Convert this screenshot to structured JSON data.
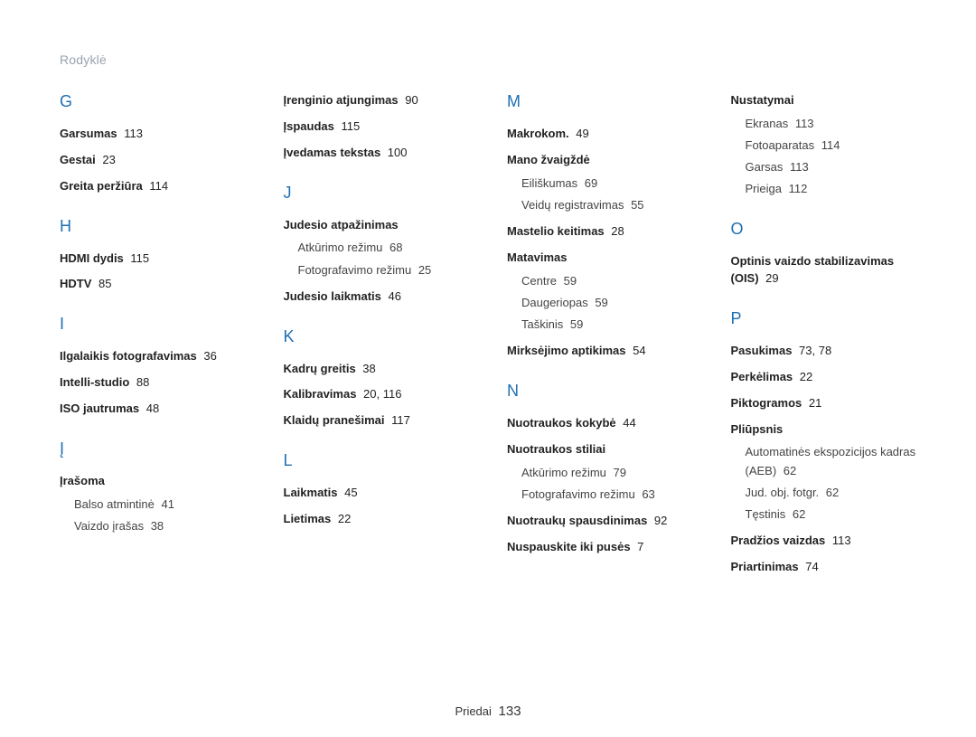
{
  "header": {
    "title": "Rodyklė"
  },
  "footer": {
    "section": "Priedai",
    "page": "133"
  },
  "colors": {
    "accent": "#1f6fb3",
    "muted": "#9aa3ae",
    "text": "#222222"
  },
  "cols": [
    [
      {
        "type": "letter",
        "text": "G"
      },
      {
        "type": "entry",
        "label": "Garsumas",
        "refs": "113"
      },
      {
        "type": "entry",
        "label": "Gestai",
        "refs": "23"
      },
      {
        "type": "entry",
        "label": "Greita peržiūra",
        "refs": "114"
      },
      {
        "type": "letter",
        "text": "H"
      },
      {
        "type": "entry",
        "label": "HDMI dydis",
        "refs": "115"
      },
      {
        "type": "entry",
        "label": "HDTV",
        "refs": "85"
      },
      {
        "type": "letter",
        "text": "I"
      },
      {
        "type": "entry",
        "label": "Ilgalaikis fotografavimas",
        "refs": "36"
      },
      {
        "type": "entry",
        "label": "Intelli-studio",
        "refs": "88"
      },
      {
        "type": "entry",
        "label": "ISO jautrumas",
        "refs": "48"
      },
      {
        "type": "letter",
        "text": "Į"
      },
      {
        "type": "group",
        "label": "Įrašoma",
        "subs": [
          {
            "label": "Balso atmintinė",
            "refs": "41"
          },
          {
            "label": "Vaizdo įrašas",
            "refs": "38"
          }
        ]
      }
    ],
    [
      {
        "type": "entry",
        "label": "Įrenginio atjungimas",
        "refs": "90"
      },
      {
        "type": "entry",
        "label": "Įspaudas",
        "refs": "115"
      },
      {
        "type": "entry",
        "label": "Įvedamas tekstas",
        "refs": "100"
      },
      {
        "type": "letter",
        "text": "J"
      },
      {
        "type": "group",
        "label": "Judesio atpažinimas",
        "subs": [
          {
            "label": "Atkūrimo režimu",
            "refs": "68"
          },
          {
            "label": "Fotografavimo režimu",
            "refs": "25"
          }
        ]
      },
      {
        "type": "entry",
        "label": "Judesio laikmatis",
        "refs": "46"
      },
      {
        "type": "letter",
        "text": "K"
      },
      {
        "type": "entry",
        "label": "Kadrų greitis",
        "refs": "38"
      },
      {
        "type": "entry",
        "label": "Kalibravimas",
        "refs": "20, 116"
      },
      {
        "type": "entry",
        "label": "Klaidų pranešimai",
        "refs": "117"
      },
      {
        "type": "letter",
        "text": "L"
      },
      {
        "type": "entry",
        "label": "Laikmatis",
        "refs": "45"
      },
      {
        "type": "entry",
        "label": "Lietimas",
        "refs": "22"
      }
    ],
    [
      {
        "type": "letter",
        "text": "M"
      },
      {
        "type": "entry",
        "label": "Makrokom.",
        "refs": "49"
      },
      {
        "type": "group",
        "label": "Mano žvaigždė",
        "subs": [
          {
            "label": "Eiliškumas",
            "refs": "69"
          },
          {
            "label": "Veidų registravimas",
            "refs": "55"
          }
        ]
      },
      {
        "type": "entry",
        "label": "Mastelio keitimas",
        "refs": "28"
      },
      {
        "type": "group",
        "label": "Matavimas",
        "subs": [
          {
            "label": "Centre",
            "refs": "59"
          },
          {
            "label": "Daugeriopas",
            "refs": "59"
          },
          {
            "label": "Taškinis",
            "refs": "59"
          }
        ]
      },
      {
        "type": "entry",
        "label": "Mirksėjimo aptikimas",
        "refs": "54"
      },
      {
        "type": "letter",
        "text": "N"
      },
      {
        "type": "entry",
        "label": "Nuotraukos kokybė",
        "refs": "44"
      },
      {
        "type": "group",
        "label": "Nuotraukos stiliai",
        "subs": [
          {
            "label": "Atkūrimo režimu",
            "refs": "79"
          },
          {
            "label": "Fotografavimo režimu",
            "refs": "63"
          }
        ]
      },
      {
        "type": "entry",
        "label": "Nuotraukų spausdinimas",
        "refs": "92"
      },
      {
        "type": "entry",
        "label": "Nuspauskite iki pusės",
        "refs": "7"
      }
    ],
    [
      {
        "type": "group",
        "label": "Nustatymai",
        "subs": [
          {
            "label": "Ekranas",
            "refs": "113"
          },
          {
            "label": "Fotoaparatas",
            "refs": "114"
          },
          {
            "label": "Garsas",
            "refs": "113"
          },
          {
            "label": "Prieiga",
            "refs": "112"
          }
        ]
      },
      {
        "type": "letter",
        "text": "O"
      },
      {
        "type": "entry",
        "label": "Optinis vaizdo stabilizavimas (OIS)",
        "refs": "29"
      },
      {
        "type": "letter",
        "text": "P"
      },
      {
        "type": "entry",
        "label": "Pasukimas",
        "refs": "73, 78"
      },
      {
        "type": "entry",
        "label": "Perkėlimas",
        "refs": "22"
      },
      {
        "type": "entry",
        "label": "Piktogramos",
        "refs": "21"
      },
      {
        "type": "group",
        "label": "Pliūpsnis",
        "subs": [
          {
            "label": "Automatinės ekspozicijos kadras (AEB)",
            "refs": "62"
          },
          {
            "label": "Jud. obj. fotgr.",
            "refs": "62"
          },
          {
            "label": "Tęstinis",
            "refs": "62"
          }
        ]
      },
      {
        "type": "entry",
        "label": "Pradžios vaizdas",
        "refs": "113"
      },
      {
        "type": "entry",
        "label": "Priartinimas",
        "refs": "74"
      }
    ]
  ]
}
